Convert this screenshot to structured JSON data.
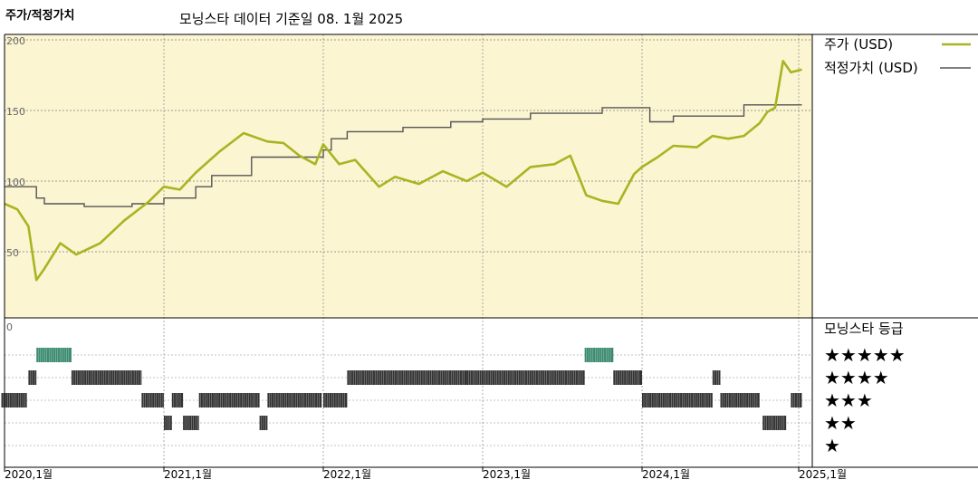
{
  "header": {
    "title": "주가/적정가치",
    "subtitle": "모닝스타 데이터 기준일 08. 1월 2025"
  },
  "colors": {
    "price_line": "#a9b422",
    "fair_value_line": "#555555",
    "top_panel_bg": "#fbf5d2",
    "rating_bar": "#333333",
    "rating_bar_top": "#3a8a70"
  },
  "chart_data": [
    {
      "type": "line",
      "title": "",
      "xlabel": "",
      "ylabel": "",
      "ylim": [
        0,
        200
      ],
      "yticks": [
        "200",
        "150",
        "100",
        "50"
      ],
      "xticks": [
        "2020,1월",
        "2021,1월",
        "2022,1월",
        "2023,1월",
        "2024,1월",
        "2025,1월"
      ],
      "grid": true,
      "legend": "top-right",
      "series": [
        {
          "name": "주가 (USD)",
          "x": [
            2020.0,
            2020.08,
            2020.15,
            2020.2,
            2020.25,
            2020.35,
            2020.45,
            2020.6,
            2020.75,
            2020.9,
            2021.0,
            2021.1,
            2021.2,
            2021.35,
            2021.5,
            2021.65,
            2021.75,
            2021.85,
            2021.95,
            2022.0,
            2022.1,
            2022.2,
            2022.35,
            2022.45,
            2022.6,
            2022.75,
            2022.9,
            2023.0,
            2023.15,
            2023.3,
            2023.45,
            2023.55,
            2023.65,
            2023.75,
            2023.85,
            2023.95,
            2024.0,
            2024.1,
            2024.2,
            2024.35,
            2024.45,
            2024.55,
            2024.65,
            2024.75,
            2024.8,
            2024.85,
            2024.9,
            2024.95,
            2025.02
          ],
          "values": [
            84,
            80,
            68,
            30,
            38,
            56,
            48,
            56,
            72,
            85,
            96,
            94,
            106,
            121,
            134,
            128,
            127,
            118,
            112,
            126,
            112,
            115,
            96,
            103,
            98,
            107,
            100,
            106,
            96,
            110,
            112,
            118,
            90,
            86,
            84,
            105,
            110,
            117,
            125,
            124,
            132,
            130,
            132,
            141,
            149,
            152,
            185,
            177,
            179
          ]
        },
        {
          "name": "적정가치 (USD)",
          "x": [
            2020.0,
            2020.2,
            2020.25,
            2020.5,
            2020.8,
            2021.0,
            2021.2,
            2021.3,
            2021.55,
            2022.0,
            2022.05,
            2022.15,
            2022.5,
            2022.8,
            2023.0,
            2023.3,
            2023.55,
            2023.75,
            2023.95,
            2024.05,
            2024.2,
            2024.4,
            2024.65,
            2024.85,
            2025.02
          ],
          "values": [
            96,
            88,
            84,
            82,
            84,
            88,
            96,
            104,
            117,
            122,
            130,
            135,
            138,
            142,
            144,
            148,
            148,
            152,
            152,
            142,
            146,
            146,
            154,
            154,
            154
          ]
        }
      ]
    },
    {
      "type": "heatmap",
      "title": "모닝스타 등급",
      "categories": [
        "★★★★★",
        "★★★★",
        "★★★",
        "★★",
        "★"
      ],
      "ytick": "0",
      "periods": [
        {
          "start": 2019.98,
          "end": 2020.14,
          "stars": 3
        },
        {
          "start": 2020.15,
          "end": 2020.2,
          "stars": 4
        },
        {
          "start": 2020.2,
          "end": 2020.42,
          "stars": 5
        },
        {
          "start": 2020.42,
          "end": 2020.86,
          "stars": 4
        },
        {
          "start": 2020.86,
          "end": 2021.0,
          "stars": 3
        },
        {
          "start": 2021.0,
          "end": 2021.05,
          "stars": 2
        },
        {
          "start": 2021.05,
          "end": 2021.12,
          "stars": 3
        },
        {
          "start": 2021.12,
          "end": 2021.22,
          "stars": 2
        },
        {
          "start": 2021.22,
          "end": 2021.6,
          "stars": 3
        },
        {
          "start": 2021.6,
          "end": 2021.65,
          "stars": 2
        },
        {
          "start": 2021.65,
          "end": 2021.99,
          "stars": 3
        },
        {
          "start": 2022.0,
          "end": 2022.15,
          "stars": 3
        },
        {
          "start": 2022.15,
          "end": 2022.9,
          "stars": 4
        },
        {
          "start": 2022.9,
          "end": 2023.45,
          "stars": 4
        },
        {
          "start": 2023.45,
          "end": 2023.64,
          "stars": 4
        },
        {
          "start": 2023.64,
          "end": 2023.82,
          "stars": 5
        },
        {
          "start": 2023.82,
          "end": 2024.0,
          "stars": 4
        },
        {
          "start": 2024.0,
          "end": 2024.05,
          "stars": 3
        },
        {
          "start": 2024.05,
          "end": 2024.45,
          "stars": 3
        },
        {
          "start": 2024.45,
          "end": 2024.5,
          "stars": 4
        },
        {
          "start": 2024.5,
          "end": 2024.75,
          "stars": 3
        },
        {
          "start": 2024.77,
          "end": 2024.92,
          "stars": 2
        },
        {
          "start": 2024.95,
          "end": 2025.02,
          "stars": 3
        }
      ]
    }
  ]
}
